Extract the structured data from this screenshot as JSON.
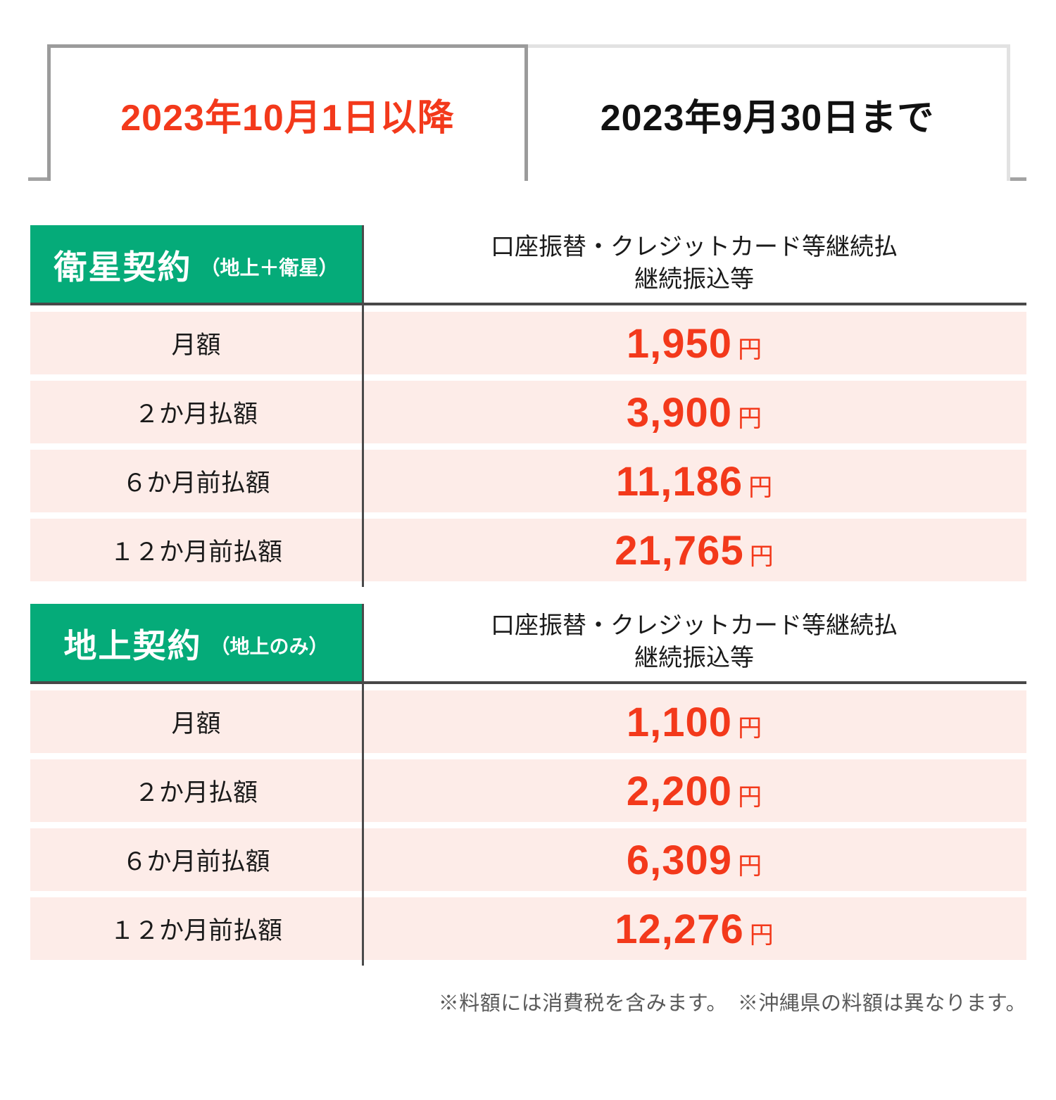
{
  "tabs": [
    {
      "label": "2023年10月1日以降",
      "active": true
    },
    {
      "label": "2023年9月30日まで",
      "active": false
    }
  ],
  "tables": [
    {
      "title": "衛星契約",
      "subtitle": "（地上＋衛星）",
      "column_header_line1": "口座振替・クレジットカード等継続払",
      "column_header_line2": "継続振込等",
      "rows": [
        {
          "label": "月額",
          "value": "1,950",
          "unit": "円"
        },
        {
          "label": "２か月払額",
          "value": "3,900",
          "unit": "円"
        },
        {
          "label": "６か月前払額",
          "value": "11,186",
          "unit": "円"
        },
        {
          "label": "１２か月前払額",
          "value": "21,765",
          "unit": "円"
        }
      ]
    },
    {
      "title": "地上契約",
      "subtitle": "（地上のみ）",
      "column_header_line1": "口座振替・クレジットカード等継続払",
      "column_header_line2": "継続振込等",
      "rows": [
        {
          "label": "月額",
          "value": "1,100",
          "unit": "円"
        },
        {
          "label": "２か月払額",
          "value": "2,200",
          "unit": "円"
        },
        {
          "label": "６か月前払額",
          "value": "6,309",
          "unit": "円"
        },
        {
          "label": "１２か月前払額",
          "value": "12,276",
          "unit": "円"
        }
      ]
    }
  ],
  "footnote": "※料額には消費税を含みます。　※沖縄県の料額は異なります。",
  "colors": {
    "accent_green": "#05ab79",
    "row_pink": "#fdece8",
    "price_red": "#f3391b",
    "active_tab_border": "#9b9b9b",
    "inactive_tab_border": "#e2e2e2",
    "rule_dark": "#4a4a4a"
  }
}
